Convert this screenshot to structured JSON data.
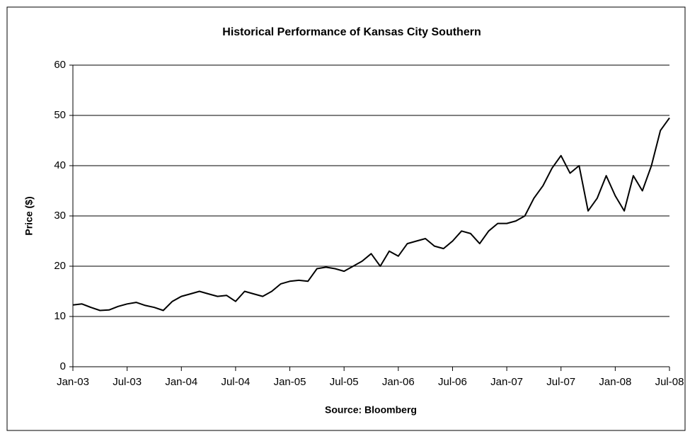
{
  "chart_data": {
    "type": "line",
    "title": "Historical Performance of Kansas City Southern",
    "y_label": "Price ($)",
    "x_label": "Source: Bloomberg",
    "x": [
      "2003-01",
      "2003-02",
      "2003-03",
      "2003-04",
      "2003-05",
      "2003-06",
      "2003-07",
      "2003-08",
      "2003-09",
      "2003-10",
      "2003-11",
      "2003-12",
      "2004-01",
      "2004-02",
      "2004-03",
      "2004-04",
      "2004-05",
      "2004-06",
      "2004-07",
      "2004-08",
      "2004-09",
      "2004-10",
      "2004-11",
      "2004-12",
      "2005-01",
      "2005-02",
      "2005-03",
      "2005-04",
      "2005-05",
      "2005-06",
      "2005-07",
      "2005-08",
      "2005-09",
      "2005-10",
      "2005-11",
      "2005-12",
      "2006-01",
      "2006-02",
      "2006-03",
      "2006-04",
      "2006-05",
      "2006-06",
      "2006-07",
      "2006-08",
      "2006-09",
      "2006-10",
      "2006-11",
      "2006-12",
      "2007-01",
      "2007-02",
      "2007-03",
      "2007-04",
      "2007-05",
      "2007-06",
      "2007-07",
      "2007-08",
      "2007-09",
      "2007-10",
      "2007-11",
      "2007-12",
      "2008-01",
      "2008-02",
      "2008-03",
      "2008-04",
      "2008-05",
      "2008-06",
      "2008-07"
    ],
    "series": [
      {
        "name": "Kansas City Southern",
        "color": "#000000",
        "values": [
          12.3,
          12.5,
          11.8,
          11.2,
          11.3,
          12.0,
          12.5,
          12.8,
          12.2,
          11.8,
          11.2,
          13.0,
          14.0,
          14.5,
          15.0,
          14.5,
          14.0,
          14.2,
          13.0,
          15.0,
          14.5,
          14.0,
          15.0,
          16.5,
          17.0,
          17.2,
          17.0,
          19.5,
          19.8,
          19.5,
          19.0,
          20.0,
          21.0,
          22.5,
          20.0,
          23.0,
          22.0,
          24.5,
          25.0,
          25.5,
          24.0,
          23.5,
          25.0,
          27.0,
          26.5,
          24.5,
          27.0,
          28.5,
          28.5,
          29.0,
          30.0,
          33.5,
          36.0,
          39.5,
          42.0,
          38.5,
          40.0,
          31.0,
          33.5,
          38.0,
          34.0,
          31.0,
          38.0,
          35.0,
          40.0,
          47.0,
          49.5
        ]
      }
    ],
    "xlim": [
      "2003-01",
      "2008-07"
    ],
    "xticks": [
      {
        "value": "2003-01",
        "label": "Jan-03"
      },
      {
        "value": "2003-07",
        "label": "Jul-03"
      },
      {
        "value": "2004-01",
        "label": "Jan-04"
      },
      {
        "value": "2004-07",
        "label": "Jul-04"
      },
      {
        "value": "2005-01",
        "label": "Jan-05"
      },
      {
        "value": "2005-07",
        "label": "Jul-05"
      },
      {
        "value": "2006-01",
        "label": "Jan-06"
      },
      {
        "value": "2006-07",
        "label": "Jul-06"
      },
      {
        "value": "2007-01",
        "label": "Jan-07"
      },
      {
        "value": "2007-07",
        "label": "Jul-07"
      },
      {
        "value": "2008-01",
        "label": "Jan-08"
      },
      {
        "value": "2008-07",
        "label": "Jul-08"
      }
    ],
    "ylim": [
      0,
      60
    ],
    "yticks": [
      0,
      10,
      20,
      30,
      40,
      50,
      60
    ],
    "grid": true,
    "legend": false
  }
}
